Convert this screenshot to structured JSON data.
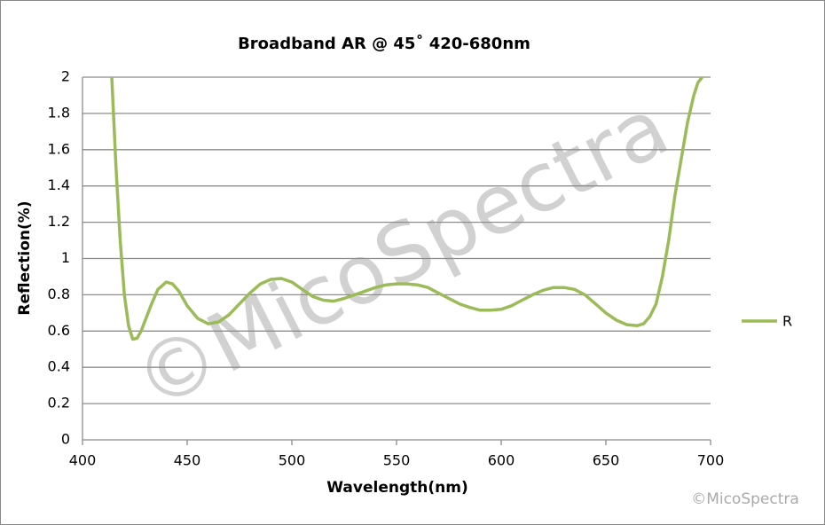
{
  "chart_data": {
    "type": "line",
    "title": "Broadband AR @ 45˚ 420-680nm",
    "x_label": "Wavelength(nm)",
    "y_label": "Reflection(%)",
    "x": [
      414,
      416,
      418,
      420,
      422,
      424,
      426,
      428,
      430,
      433,
      436,
      440,
      443,
      446,
      450,
      455,
      460,
      465,
      470,
      475,
      480,
      485,
      490,
      495,
      500,
      505,
      510,
      515,
      520,
      525,
      530,
      535,
      540,
      545,
      550,
      555,
      560,
      565,
      570,
      575,
      580,
      585,
      590,
      595,
      600,
      605,
      610,
      615,
      620,
      625,
      630,
      635,
      640,
      645,
      650,
      655,
      660,
      665,
      668,
      671,
      674,
      677,
      680,
      683,
      686,
      689,
      692,
      694,
      696
    ],
    "series": [
      {
        "name": "R",
        "color": "#9bbb59",
        "values": [
          2.0,
          1.5,
          1.1,
          0.8,
          0.63,
          0.555,
          0.56,
          0.6,
          0.66,
          0.75,
          0.83,
          0.87,
          0.86,
          0.82,
          0.74,
          0.67,
          0.64,
          0.65,
          0.69,
          0.75,
          0.81,
          0.86,
          0.885,
          0.89,
          0.87,
          0.83,
          0.79,
          0.77,
          0.765,
          0.78,
          0.8,
          0.82,
          0.84,
          0.855,
          0.86,
          0.86,
          0.855,
          0.84,
          0.81,
          0.78,
          0.75,
          0.73,
          0.715,
          0.715,
          0.72,
          0.74,
          0.77,
          0.8,
          0.825,
          0.84,
          0.84,
          0.83,
          0.8,
          0.75,
          0.7,
          0.66,
          0.635,
          0.63,
          0.64,
          0.68,
          0.75,
          0.9,
          1.1,
          1.35,
          1.55,
          1.75,
          1.9,
          1.97,
          2.0
        ]
      }
    ],
    "xlim": [
      400,
      700
    ],
    "xticks": [
      400,
      450,
      500,
      550,
      600,
      650,
      700
    ],
    "ylim": [
      0,
      2
    ],
    "yticks": [
      0,
      0.2,
      0.4,
      0.6,
      0.8,
      1,
      1.2,
      1.4,
      1.6,
      1.8,
      2
    ],
    "grid": true,
    "legend": "right"
  },
  "watermark": "©MicoSpectra",
  "credit": "©MicoSpectra"
}
